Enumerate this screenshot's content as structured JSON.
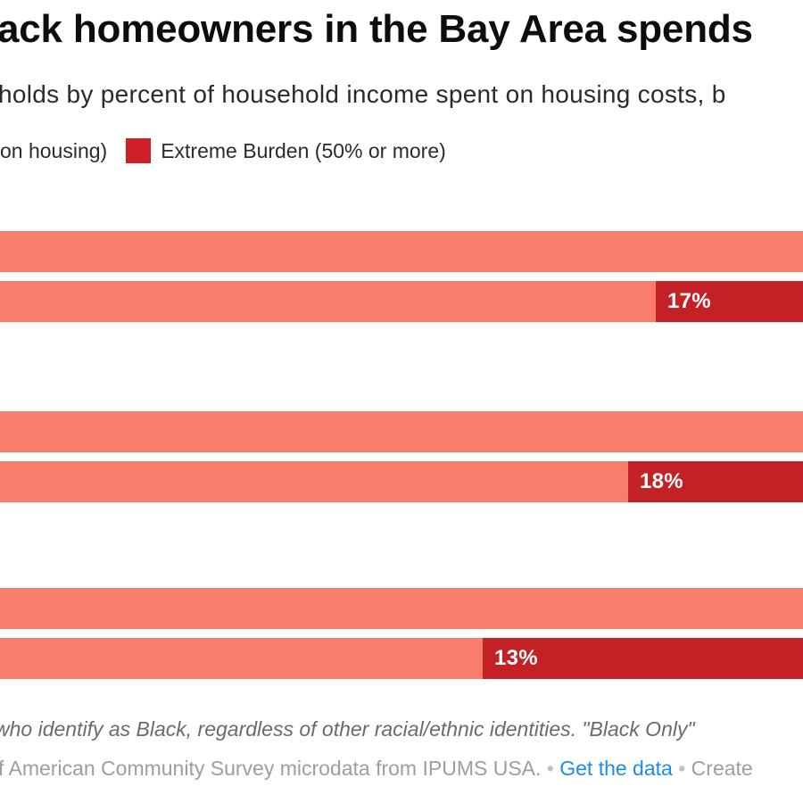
{
  "header": {
    "title_visible": "ack homeowners in the Bay Area spends",
    "subtitle_visible": "holds by percent of household income spent on housing costs, b"
  },
  "legend": {
    "moderate_label_visible": "on housing)",
    "extreme_label": "Extreme Burden (50% or more)"
  },
  "colors": {
    "moderate": "#f87d6a",
    "extreme": "#c32126",
    "legend_swatch": "#cd2027",
    "link": "#1e8bea"
  },
  "chart_data": {
    "type": "bar",
    "orientation": "horizontal",
    "note": "View is cropped on left and right; category axis labels not visible",
    "legend_entries_visible": [
      "on housing)",
      "Extreme Burden (50% or more)"
    ],
    "rows_per_group": 2,
    "groups": [
      {
        "extreme_value": 17,
        "extreme_label": "17%",
        "extreme_start_fraction": 0.8167
      },
      {
        "extreme_value": 18,
        "extreme_label": "18%",
        "extreme_start_fraction": 0.7822
      },
      {
        "extreme_value": 13,
        "extreme_label": "13%",
        "extreme_start_fraction": 0.6011
      }
    ]
  },
  "footer": {
    "note_visible": "who identify as Black, regardless of other racial/ethnic identities. \"Black Only\"",
    "source_prefix_visible": "f American Community Survey microdata from IPUMS USA.",
    "dot1": " • ",
    "link_text": "Get the data",
    "dot2": " • ",
    "source_suffix_visible": "Create"
  }
}
